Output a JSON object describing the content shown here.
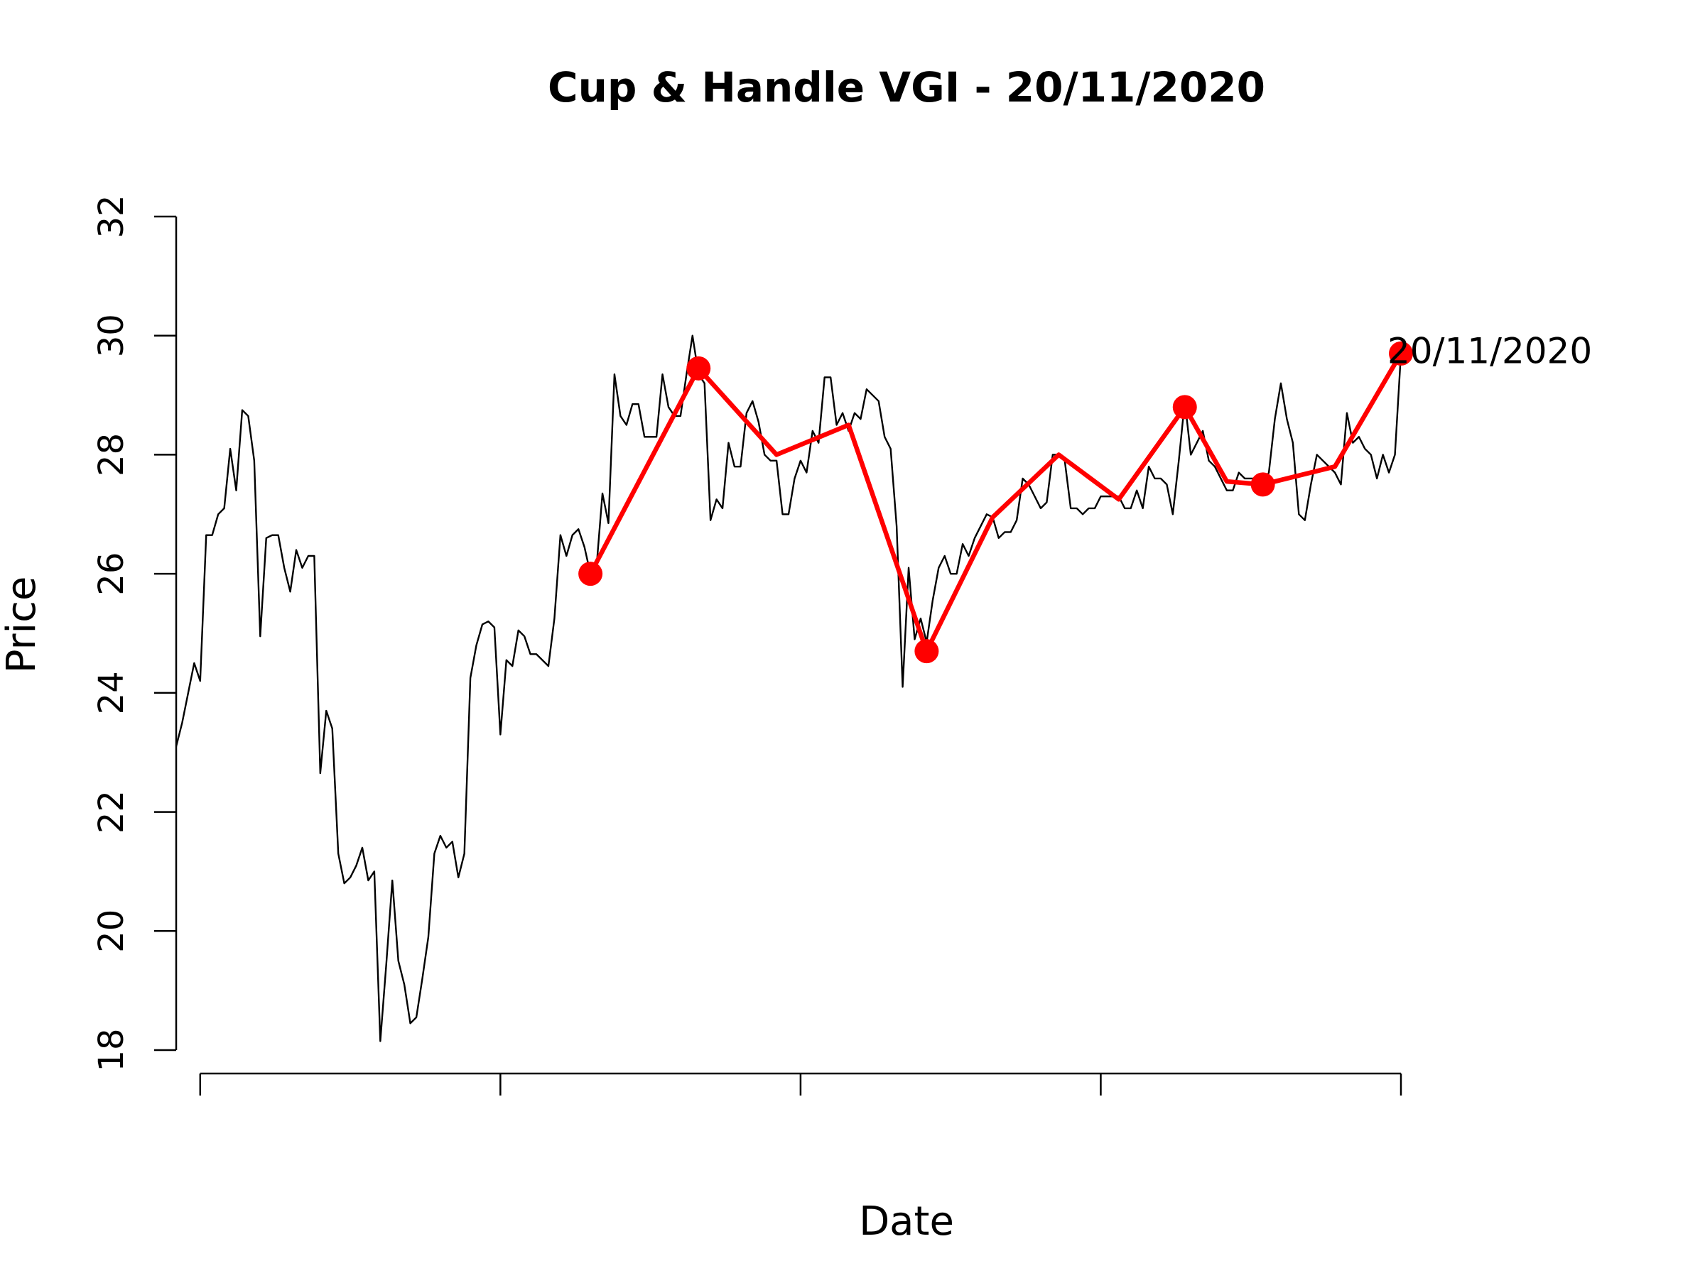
{
  "chart_data": {
    "type": "line",
    "title": "Cup & Handle VGI - 20/11/2020",
    "x_label": "Date",
    "y_label": "Price",
    "annotation": "20/11/2020",
    "xlim": [
      0,
      204
    ],
    "xticks": [
      4,
      54,
      104,
      154,
      204
    ],
    "ylim": [
      18,
      32
    ],
    "yticks": [
      18,
      20,
      22,
      24,
      26,
      28,
      30,
      32
    ],
    "grid": false,
    "series": [
      {
        "color": "#000000",
        "x": [
          0,
          1,
          2,
          3,
          4,
          5,
          6,
          7,
          8,
          9,
          10,
          11,
          12,
          13,
          14,
          15,
          16,
          17,
          18,
          19,
          20,
          21,
          22,
          23,
          24,
          25,
          26,
          27,
          28,
          29,
          30,
          31,
          32,
          33,
          34,
          35,
          36,
          37,
          38,
          39,
          40,
          41,
          42,
          43,
          44,
          45,
          46,
          47,
          48,
          49,
          50,
          51,
          52,
          53,
          54,
          55,
          56,
          57,
          58,
          59,
          60,
          61,
          62,
          63,
          64,
          65,
          66,
          67,
          68,
          69,
          70,
          71,
          72,
          73,
          74,
          75,
          76,
          77,
          78,
          79,
          80,
          81,
          82,
          83,
          84,
          85,
          86,
          87,
          88,
          89,
          90,
          91,
          92,
          93,
          94,
          95,
          96,
          97,
          98,
          99,
          100,
          101,
          102,
          103,
          104,
          105,
          106,
          107,
          108,
          109,
          110,
          111,
          112,
          113,
          114,
          115,
          116,
          117,
          118,
          119,
          120,
          121,
          122,
          123,
          124,
          125,
          126,
          127,
          128,
          129,
          130,
          131,
          132,
          133,
          134,
          135,
          136,
          137,
          138,
          139,
          140,
          141,
          142,
          143,
          144,
          145,
          146,
          147,
          148,
          149,
          150,
          151,
          152,
          153,
          154,
          155,
          156,
          157,
          158,
          159,
          160,
          161,
          162,
          163,
          164,
          165,
          166,
          167,
          168,
          169,
          170,
          171,
          172,
          173,
          174,
          175,
          176,
          177,
          178,
          179,
          180,
          181,
          182,
          183,
          184,
          185,
          186,
          187,
          188,
          189,
          190,
          191,
          192,
          193,
          194,
          195,
          196,
          197,
          198,
          199,
          200,
          201,
          202,
          203,
          204
        ],
        "values": [
          23.1,
          23.5,
          24.0,
          24.5,
          24.2,
          26.65,
          26.65,
          27.0,
          27.1,
          28.1,
          27.4,
          28.75,
          28.65,
          27.9,
          24.95,
          26.6,
          26.65,
          26.65,
          26.1,
          25.7,
          26.4,
          26.1,
          26.3,
          26.3,
          22.65,
          23.7,
          23.4,
          21.3,
          20.8,
          20.9,
          21.1,
          21.4,
          20.85,
          21.0,
          18.15,
          19.45,
          20.85,
          19.5,
          19.1,
          18.45,
          18.55,
          19.2,
          19.9,
          21.3,
          21.6,
          21.4,
          21.5,
          20.9,
          21.3,
          24.25,
          24.8,
          25.15,
          25.2,
          25.1,
          23.3,
          24.55,
          24.45,
          25.05,
          24.95,
          24.65,
          24.65,
          24.55,
          24.45,
          25.25,
          26.65,
          26.3,
          26.65,
          26.75,
          26.45,
          26.0,
          26.1,
          27.35,
          26.85,
          29.35,
          28.65,
          28.5,
          28.85,
          28.85,
          28.3,
          28.3,
          28.3,
          29.35,
          28.8,
          28.65,
          28.65,
          29.35,
          30.0,
          29.35,
          29.2,
          26.9,
          27.25,
          27.1,
          28.2,
          27.8,
          27.8,
          28.7,
          28.9,
          28.55,
          28.0,
          27.9,
          27.9,
          27.0,
          27.0,
          27.6,
          27.9,
          27.7,
          28.4,
          28.2,
          29.3,
          29.3,
          28.5,
          28.7,
          28.4,
          28.7,
          28.6,
          29.1,
          29.0,
          28.9,
          28.3,
          28.1,
          26.8,
          24.1,
          26.1,
          24.9,
          25.25,
          24.85,
          25.55,
          26.1,
          26.3,
          26.0,
          26.0,
          26.5,
          26.3,
          26.6,
          26.8,
          27.0,
          26.95,
          26.6,
          26.7,
          26.7,
          26.9,
          27.6,
          27.5,
          27.3,
          27.1,
          27.2,
          28.0,
          28.0,
          27.9,
          27.1,
          27.1,
          27.0,
          27.1,
          27.1,
          27.3,
          27.3,
          27.3,
          27.3,
          27.1,
          27.1,
          27.4,
          27.1,
          27.8,
          27.6,
          27.6,
          27.5,
          27.0,
          27.9,
          28.9,
          28.0,
          28.2,
          28.4,
          27.9,
          27.8,
          27.6,
          27.4,
          27.4,
          27.7,
          27.6,
          27.6,
          27.6,
          27.5,
          27.7,
          28.6,
          29.2,
          28.6,
          28.2,
          27.0,
          26.9,
          27.5,
          28.0,
          27.9,
          27.8,
          27.7,
          27.5,
          28.7,
          28.2,
          28.3,
          28.1,
          28.0,
          27.6,
          28.0,
          27.7,
          28.0,
          29.7
        ]
      },
      {
        "color": "#ff0000",
        "x": [
          69,
          87,
          100,
          112,
          125,
          136,
          147,
          157,
          168,
          175,
          181,
          193,
          204
        ],
        "values": [
          26.0,
          29.45,
          28.0,
          28.5,
          24.7,
          26.95,
          28.0,
          27.25,
          28.8,
          27.55,
          27.5,
          27.8,
          29.7
        ],
        "markers": [
          true,
          true,
          false,
          false,
          true,
          false,
          false,
          false,
          true,
          false,
          true,
          false,
          true
        ]
      }
    ]
  }
}
